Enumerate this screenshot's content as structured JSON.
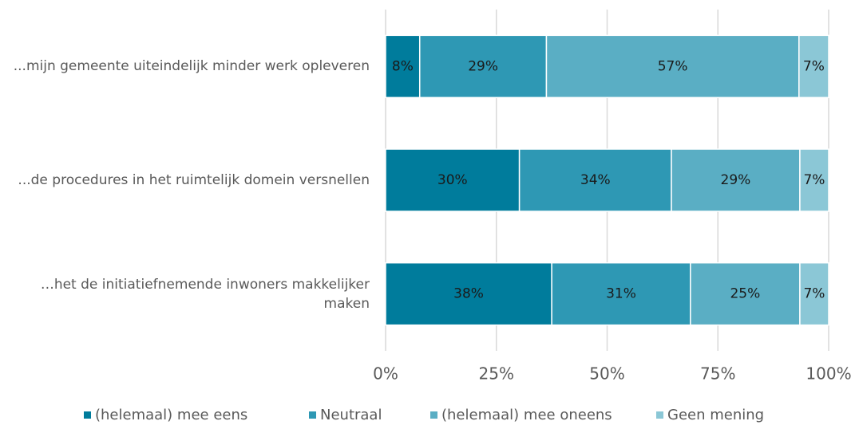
{
  "chart_data": {
    "type": "stacked_barh",
    "categories": [
      "...mijn gemeente uiteindelijk minder werk opleveren",
      "...de procedures in het ruimtelijk domein versnellen",
      "…het de initiatiefnemende inwoners makkelijker maken"
    ],
    "series": [
      {
        "name": "(helemaal) mee eens",
        "color": "#007c9c",
        "values": [
          7.7,
          30.2,
          37.5
        ],
        "value_labels": [
          "8%",
          "30%",
          "38%"
        ]
      },
      {
        "name": "Neutraal",
        "color": "#2e98b4",
        "values": [
          28.6,
          34.3,
          31.3
        ],
        "value_labels": [
          "29%",
          "34%",
          "31%"
        ]
      },
      {
        "name": "(helemaal) mee oneens",
        "color": "#5aaec4",
        "values": [
          57.0,
          29.0,
          24.7
        ],
        "value_labels": [
          "57%",
          "29%",
          "25%"
        ]
      },
      {
        "name": "Geen mening",
        "color": "#8bc7d6",
        "values": [
          6.7,
          6.5,
          6.5
        ],
        "value_labels": [
          "7%",
          "7%",
          "7%"
        ]
      }
    ],
    "xlim": [
      0,
      100
    ],
    "xticks": [
      {
        "value": 0,
        "label": "0%"
      },
      {
        "value": 25,
        "label": "25%"
      },
      {
        "value": 50,
        "label": "50%"
      },
      {
        "value": 75,
        "label": "75%"
      },
      {
        "value": 100,
        "label": "100%"
      }
    ],
    "grid": true,
    "legend": "bottom"
  }
}
